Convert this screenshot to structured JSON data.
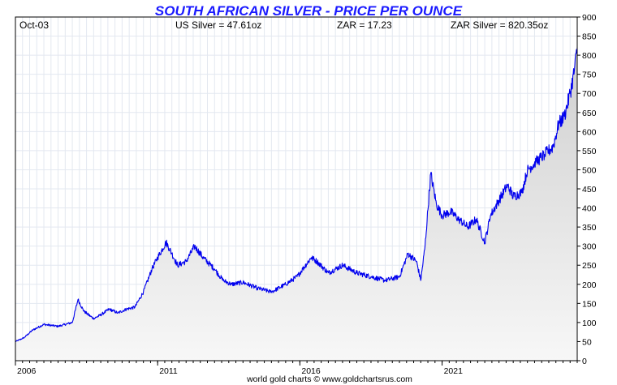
{
  "header": {
    "title": "SOUTH AFRICAN SILVER - PRICE PER OUNCE",
    "date": "Oct-03",
    "us_silver": "US Silver = 47.61oz",
    "zar": "ZAR = 17.23",
    "zar_silver": "ZAR Silver = 820.35oz"
  },
  "footer": {
    "credit": "world gold charts © www.goldchartsrus.com"
  },
  "colors": {
    "line": "#0000ee",
    "title": "#1a1aff",
    "area_top": "#cfcfcf",
    "area_bottom": "#f7f7f7",
    "grid": "#e3e8f0"
  },
  "chart_data": {
    "type": "area",
    "title": "SOUTH AFRICAN SILVER - PRICE PER OUNCE",
    "xlabel": "",
    "ylabel": "",
    "xlim": [
      2006.0,
      2025.75
    ],
    "ylim": [
      0,
      900
    ],
    "y_ticks": [
      0,
      50,
      100,
      150,
      200,
      250,
      300,
      350,
      400,
      450,
      500,
      550,
      600,
      650,
      700,
      750,
      800,
      850,
      900
    ],
    "x_tick_labels": [
      {
        "x": 2006,
        "label": "2006"
      },
      {
        "x": 2011,
        "label": "2011"
      },
      {
        "x": 2016,
        "label": "2016"
      },
      {
        "x": 2021,
        "label": "2021"
      }
    ],
    "grid": true,
    "y_axis_side": "right",
    "series": [
      {
        "x": [
          2006.0,
          2006.3,
          2006.6,
          2007.0,
          2007.5,
          2008.0,
          2008.2,
          2008.4,
          2008.75,
          2009.0,
          2009.3,
          2009.6,
          2009.9,
          2010.2,
          2010.5,
          2010.8,
          2011.0,
          2011.3,
          2011.5,
          2011.7,
          2012.0,
          2012.3,
          2012.6,
          2013.0,
          2013.3,
          2013.6,
          2014.0,
          2014.5,
          2015.0,
          2015.5,
          2015.9,
          2016.1,
          2016.4,
          2016.6,
          2017.0,
          2017.5,
          2018.0,
          2018.5,
          2019.0,
          2019.5,
          2019.8,
          2020.1,
          2020.25,
          2020.4,
          2020.6,
          2020.8,
          2021.0,
          2021.3,
          2021.6,
          2021.9,
          2022.2,
          2022.5,
          2022.7,
          2023.0,
          2023.3,
          2023.5,
          2023.8,
          2024.0,
          2024.3,
          2024.6,
          2024.9,
          2025.1,
          2025.3,
          2025.5,
          2025.65,
          2025.75
        ],
        "y": [
          50,
          60,
          80,
          95,
          90,
          100,
          160,
          130,
          110,
          120,
          135,
          125,
          135,
          140,
          180,
          240,
          270,
          310,
          280,
          250,
          260,
          300,
          270,
          240,
          210,
          200,
          205,
          190,
          180,
          200,
          220,
          240,
          270,
          260,
          230,
          250,
          230,
          220,
          210,
          220,
          280,
          260,
          210,
          300,
          490,
          410,
          380,
          390,
          370,
          350,
          370,
          310,
          380,
          420,
          460,
          430,
          440,
          500,
          520,
          540,
          560,
          620,
          640,
          700,
          760,
          820
        ]
      }
    ]
  }
}
